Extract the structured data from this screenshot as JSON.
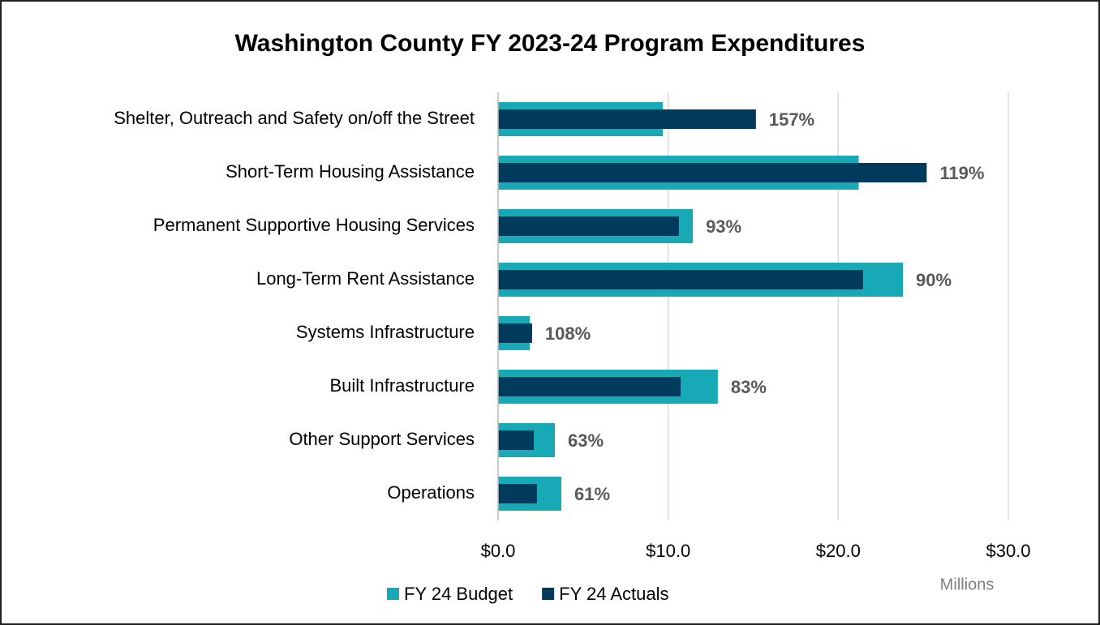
{
  "chart_data": {
    "type": "bar",
    "orientation": "horizontal",
    "title": "Washington County FY 2023-24 Program Expenditures",
    "categories": [
      "Shelter, Outreach and Safety on/off the Street",
      "Short-Term Housing Assistance",
      "Permanent Supportive Housing Services",
      "Long-Term Rent Assistance",
      "Systems Infrastructure",
      "Built Infrastructure",
      "Other Support Services",
      "Operations"
    ],
    "series": [
      {
        "name": "FY 24 Budget",
        "color": "#17a9b5",
        "values": [
          9.68,
          21.2,
          11.45,
          23.8,
          1.86,
          12.92,
          3.34,
          3.72
        ]
      },
      {
        "name": "FY 24 Actuals",
        "color": "#003a5c",
        "values": [
          15.16,
          25.2,
          10.63,
          21.46,
          2.0,
          10.73,
          2.1,
          2.29
        ],
        "data_labels": [
          "157%",
          "119%",
          "93%",
          "90%",
          "108%",
          "83%",
          "63%",
          "61%"
        ]
      }
    ],
    "xlim": [
      0,
      30
    ],
    "xticks": [
      {
        "value": 0,
        "label": "$0.0"
      },
      {
        "value": 10,
        "label": "$10.0"
      },
      {
        "value": 20,
        "label": "$20.0"
      },
      {
        "value": 30,
        "label": "$30.0"
      }
    ],
    "x_unit_label": "Millions",
    "grid": true,
    "legend": "bottom"
  }
}
